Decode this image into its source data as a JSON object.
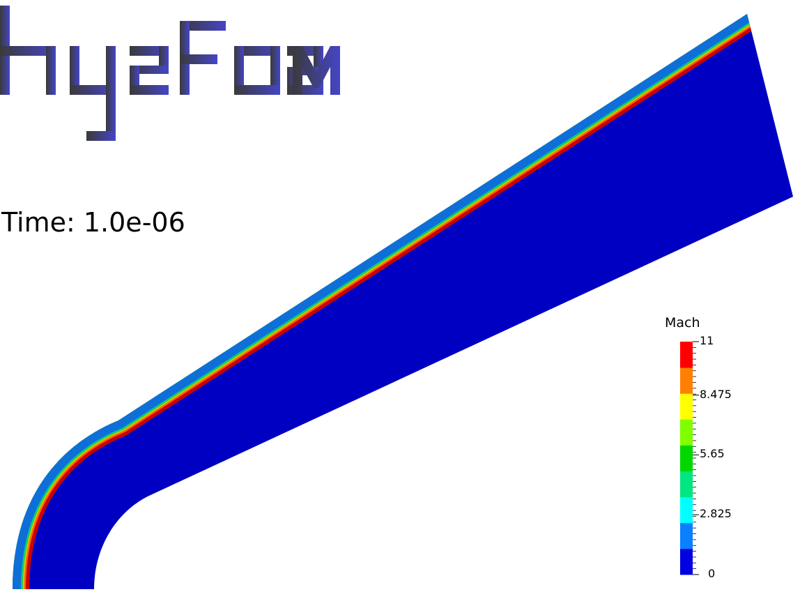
{
  "logo": {
    "text": "hy2Foam",
    "gradient_start": "#3a3a3a",
    "gradient_end": "#4545c8"
  },
  "time": {
    "label": "Time: 1.0e-06"
  },
  "colorbar": {
    "title": "Mach",
    "min": 0,
    "max": 11,
    "tick_labels": [
      "11",
      "8.475",
      "5.65",
      "2.825",
      "0"
    ],
    "tick_values": [
      11,
      8.475,
      5.65,
      2.825,
      0
    ],
    "bands": [
      {
        "color": "#0000e0"
      },
      {
        "color": "#0a80ff"
      },
      {
        "color": "#00ffff"
      },
      {
        "color": "#00e680"
      },
      {
        "color": "#00d800"
      },
      {
        "color": "#80ff00"
      },
      {
        "color": "#ffff00"
      },
      {
        "color": "#ff8000"
      },
      {
        "color": "#ff0000"
      }
    ]
  },
  "field": {
    "free_stream_color": "#0000c2",
    "boundary_layers": [
      {
        "color": "#cc0000"
      },
      {
        "color": "#ff6600"
      },
      {
        "color": "#d4d400"
      },
      {
        "color": "#33cc33"
      },
      {
        "color": "#00cc99"
      },
      {
        "color": "#0f6fd8"
      }
    ]
  }
}
